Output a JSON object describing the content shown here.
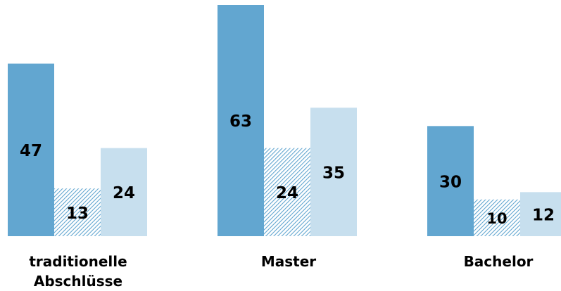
{
  "chart_data": {
    "type": "bar",
    "categories": [
      "traditionelle Abschlüsse",
      "Master",
      "Bachelor"
    ],
    "category_lines": [
      [
        "traditionelle",
        "Abschlüsse"
      ],
      [
        "Master"
      ],
      [
        "Bachelor"
      ]
    ],
    "series": [
      {
        "values": [
          47,
          63,
          30
        ],
        "color": "#62a6d0",
        "fill": "solid"
      },
      {
        "values": [
          13,
          24,
          10
        ],
        "color": "#62a6d0",
        "fill": "hatched"
      },
      {
        "values": [
          24,
          35,
          12
        ],
        "color": "#c7dfee",
        "fill": "solid"
      }
    ],
    "ylim": [
      0,
      63
    ],
    "grid": false,
    "legend": "none",
    "title": "",
    "xlabel": "",
    "ylabel": ""
  }
}
